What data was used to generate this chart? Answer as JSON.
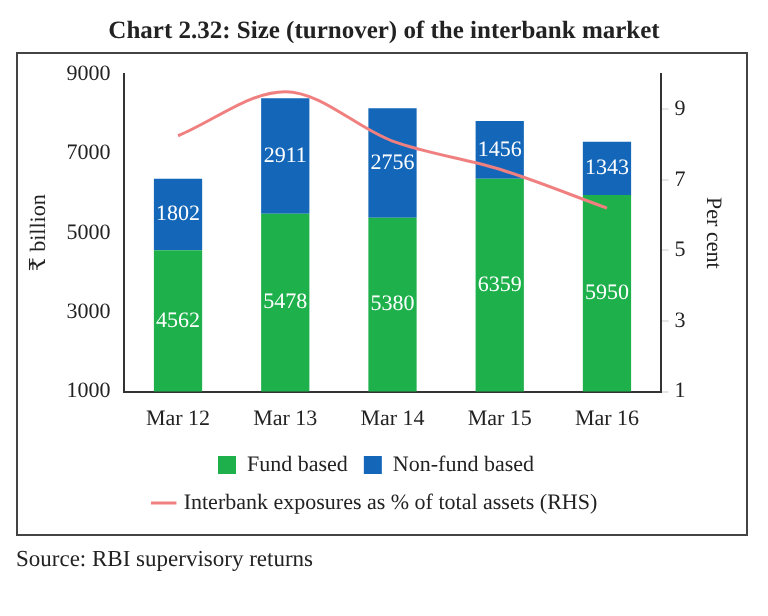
{
  "chart_data": {
    "type": "bar",
    "title": "Chart 2.32: Size (turnover) of the interbank market",
    "ylabel": "₹ billion",
    "y2label": "Per cent",
    "categories": [
      "Mar 12",
      "Mar 13",
      "Mar 14",
      "Mar 15",
      "Mar 16"
    ],
    "stacked": true,
    "series": [
      {
        "name": "Fund based",
        "color": "#1db04b",
        "values": [
          4562,
          5478,
          5380,
          6359,
          5950
        ],
        "value_labels": [
          "4562",
          "5478",
          "5380",
          "6359",
          "5950"
        ]
      },
      {
        "name": "Non-fund based",
        "color": "#1467b8",
        "values": [
          1802,
          2911,
          2756,
          1456,
          1343
        ],
        "value_labels": [
          "1802",
          "2911",
          "2756",
          "1456",
          "1343"
        ]
      },
      {
        "name": "Interbank exposures as % of total assets (RHS)",
        "type": "line",
        "axis": "y2",
        "color": "#f08080",
        "values": [
          8.25,
          9.5,
          8.1,
          7.3,
          6.2
        ]
      }
    ],
    "ylim": [
      1000,
      9000
    ],
    "yticks": [
      1000,
      3000,
      5000,
      7000,
      9000
    ],
    "y2lim": [
      1,
      10
    ],
    "y2ticks": [
      1,
      3,
      5,
      7,
      9
    ],
    "grid": false,
    "legend": "bottom",
    "marker": "none",
    "annotations": [
      "Source: RBI supervisory returns"
    ]
  }
}
